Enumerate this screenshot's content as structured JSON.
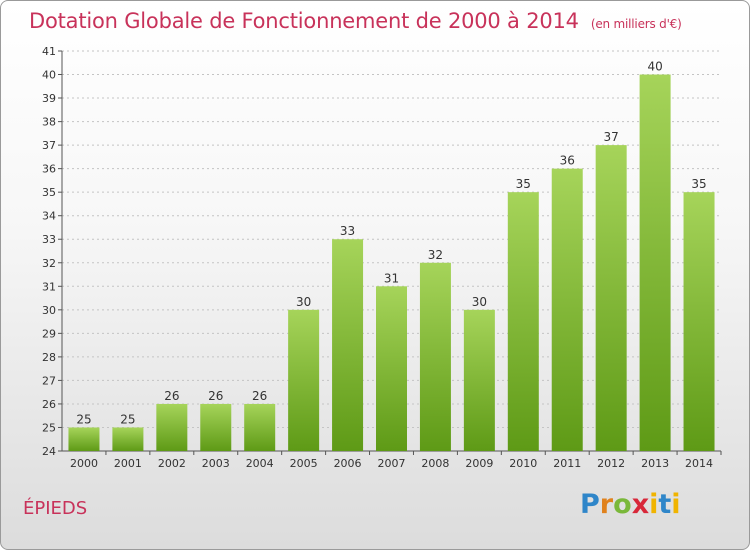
{
  "title": "Dotation Globale de Fonctionnement de 2000 à 2014",
  "subtitle": "(en milliers d'€)",
  "commune": "ÉPIEDS",
  "logo": {
    "letters": [
      "P",
      "r",
      "o",
      "x",
      "i",
      "t",
      "i"
    ]
  },
  "colors": {
    "title": "#c8325a",
    "bar_top": "#a6d45a",
    "bar_bottom": "#5e9a16",
    "logo_blue": "#2f86c9"
  },
  "chart_data": {
    "type": "bar",
    "categories": [
      "2000",
      "2001",
      "2002",
      "2003",
      "2004",
      "2005",
      "2006",
      "2007",
      "2008",
      "2009",
      "2010",
      "2011",
      "2012",
      "2013",
      "2014"
    ],
    "values": [
      25,
      25,
      26,
      26,
      26,
      30,
      33,
      31,
      32,
      30,
      35,
      36,
      37,
      40,
      35
    ],
    "yticks": [
      24,
      25,
      26,
      27,
      28,
      29,
      30,
      31,
      32,
      33,
      34,
      35,
      36,
      37,
      38,
      39,
      40,
      41
    ],
    "ylim": [
      24,
      41
    ],
    "grid": "horizontal dotted",
    "legend": "none"
  }
}
